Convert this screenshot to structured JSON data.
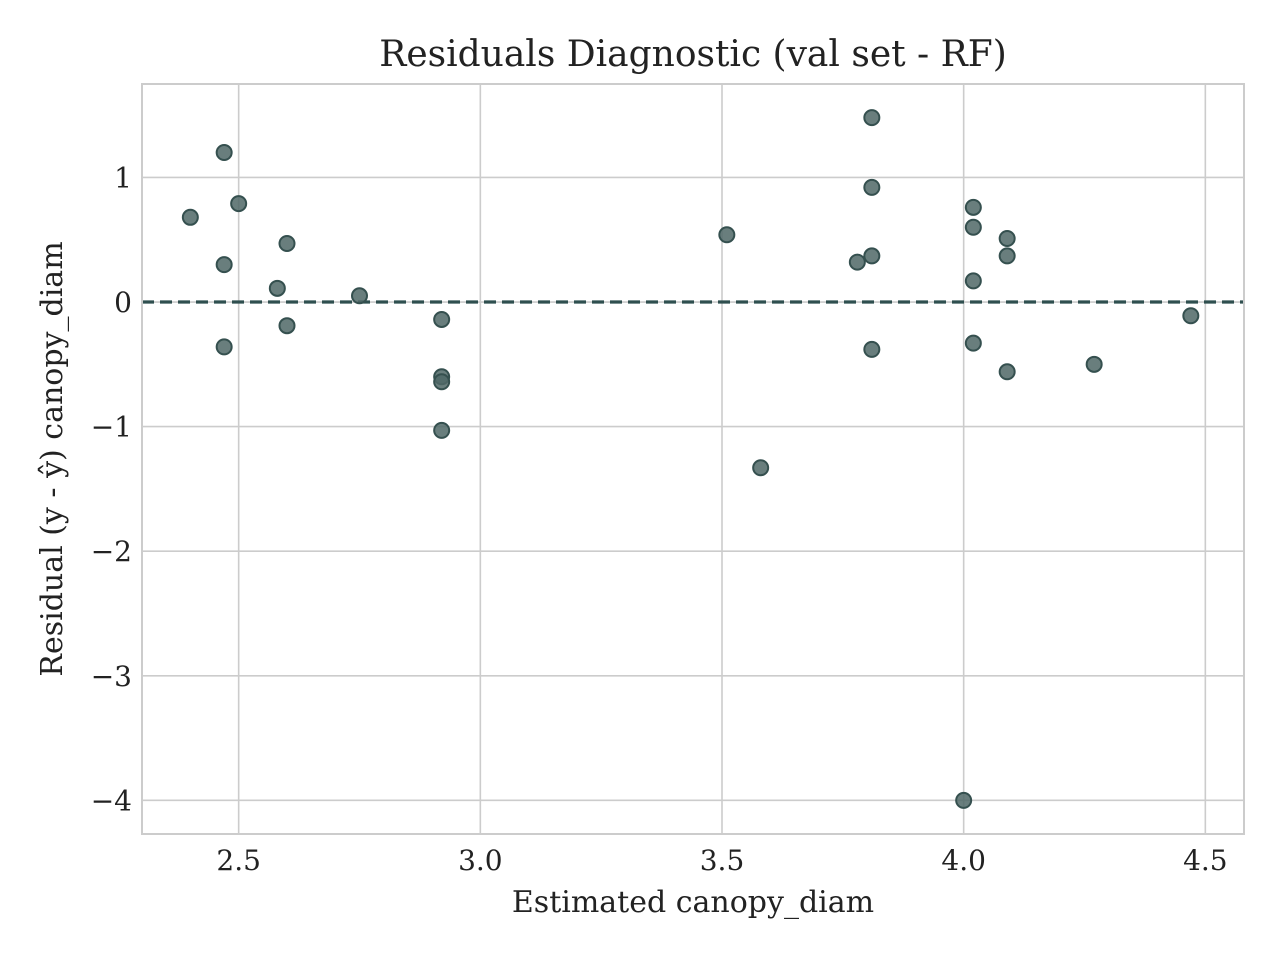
{
  "chart_data": {
    "type": "scatter",
    "title": "Residuals Diagnostic (val set - RF)",
    "xlabel": "Estimated canopy_diam",
    "ylabel": "Residual (y - ŷ) canopy_diam",
    "xlim": [
      2.3,
      4.58
    ],
    "ylim": [
      -4.27,
      1.75
    ],
    "xticks": [
      2.5,
      3.0,
      3.5,
      4.0,
      4.5
    ],
    "xtick_labels": [
      "2.5",
      "3.0",
      "3.5",
      "4.0",
      "4.5"
    ],
    "yticks": [
      1,
      0,
      -1,
      -2,
      -3,
      -4
    ],
    "ytick_labels": [
      "1",
      "0",
      "−1",
      "−2",
      "−3",
      "−4"
    ],
    "grid": true,
    "reference_line": {
      "y": 0,
      "style": "dashed",
      "color": "#2f4f4f"
    },
    "marker_color": "#4f6766",
    "marker_edge_color": "#35504f",
    "series": [
      {
        "points": [
          [
            2.4,
            0.68
          ],
          [
            2.47,
            1.2
          ],
          [
            2.47,
            0.3
          ],
          [
            2.47,
            -0.36
          ],
          [
            2.5,
            0.79
          ],
          [
            2.58,
            0.11
          ],
          [
            2.6,
            0.47
          ],
          [
            2.6,
            -0.19
          ],
          [
            2.75,
            0.05
          ],
          [
            2.92,
            -0.14
          ],
          [
            2.92,
            -0.6
          ],
          [
            2.92,
            -0.64
          ],
          [
            2.92,
            -1.03
          ],
          [
            3.51,
            0.54
          ],
          [
            3.58,
            -1.33
          ],
          [
            3.78,
            0.32
          ],
          [
            3.81,
            1.48
          ],
          [
            3.81,
            0.92
          ],
          [
            3.81,
            0.37
          ],
          [
            3.81,
            -0.38
          ],
          [
            4.0,
            -4.0
          ],
          [
            4.02,
            0.76
          ],
          [
            4.02,
            0.6
          ],
          [
            4.02,
            0.17
          ],
          [
            4.02,
            -0.33
          ],
          [
            4.09,
            0.51
          ],
          [
            4.09,
            0.37
          ],
          [
            4.09,
            -0.56
          ],
          [
            4.27,
            -0.5
          ],
          [
            4.47,
            -0.11
          ]
        ]
      }
    ]
  }
}
